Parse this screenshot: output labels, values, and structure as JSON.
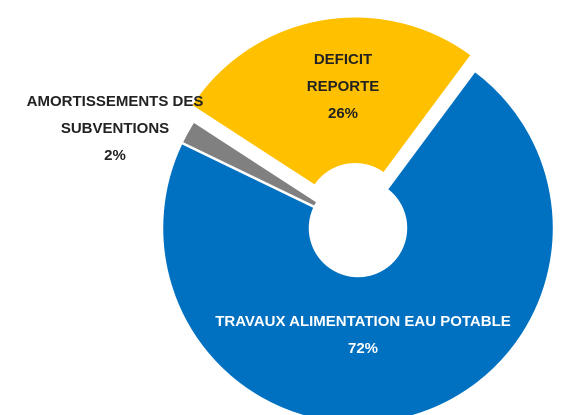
{
  "chart_data": {
    "type": "donut",
    "categories": [
      "TRAVAUX ALIMENTATION EAU POTABLE",
      "AMORTISSEMENTS DES SUBVENTIONS",
      "DEFICIT REPORTE"
    ],
    "values": [
      72,
      2,
      26
    ],
    "value_labels": [
      "72%",
      "2%",
      "26%"
    ],
    "colors": [
      "#0070c0",
      "#808080",
      "#ffc000"
    ]
  }
}
